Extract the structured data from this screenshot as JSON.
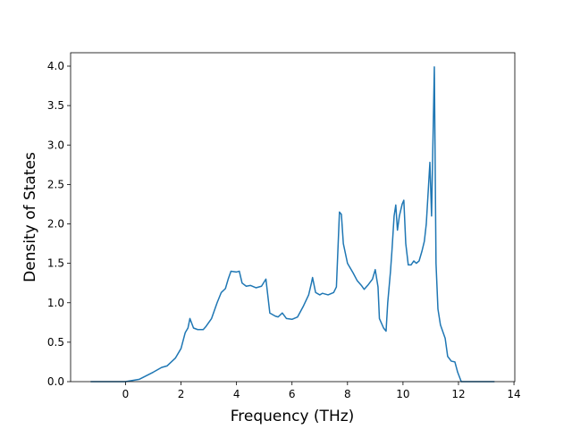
{
  "chart_data": {
    "type": "line",
    "xlabel": "Frequency (THz)",
    "ylabel": "Density of States",
    "xlim": [
      -1.98,
      14.03
    ],
    "ylim": [
      0,
      4.17
    ],
    "xticks": [
      0,
      2,
      4,
      6,
      8,
      10,
      12,
      14
    ],
    "yticks": [
      {
        "value": 0,
        "label": "0.0"
      },
      {
        "value": 0.5,
        "label": "0.5"
      },
      {
        "value": 1,
        "label": "1.0"
      },
      {
        "value": 1.5,
        "label": "1.5"
      },
      {
        "value": 2,
        "label": "2.0"
      },
      {
        "value": 2.5,
        "label": "2.5"
      },
      {
        "value": 3,
        "label": "3.0"
      },
      {
        "value": 3.5,
        "label": "3.5"
      },
      {
        "value": 4,
        "label": "4.0"
      }
    ],
    "series": [
      {
        "color": "#1f77b4",
        "x": [
          -1.26,
          0,
          0.5,
          1,
          1.3,
          1.5,
          1.8,
          2.0,
          2.15,
          2.25,
          2.32,
          2.45,
          2.6,
          2.8,
          2.9,
          3.1,
          3.3,
          3.45,
          3.6,
          3.7,
          3.8,
          4.0,
          4.1,
          4.2,
          4.35,
          4.5,
          4.7,
          4.9,
          5.06,
          5.2,
          5.4,
          5.5,
          5.65,
          5.8,
          6.0,
          6.2,
          6.4,
          6.6,
          6.7,
          6.74,
          6.85,
          7.0,
          7.1,
          7.3,
          7.5,
          7.6,
          7.71,
          7.78,
          7.85,
          8.0,
          8.2,
          8.35,
          8.5,
          8.6,
          8.75,
          8.9,
          9.0,
          9.1,
          9.15,
          9.3,
          9.39,
          9.45,
          9.55,
          9.6,
          9.68,
          9.74,
          9.8,
          9.87,
          9.97,
          10.03,
          10.1,
          10.19,
          10.29,
          10.39,
          10.48,
          10.58,
          10.68,
          10.77,
          10.84,
          10.97,
          11.03,
          11.13,
          11.19,
          11.26,
          11.35,
          11.52,
          11.61,
          11.74,
          11.87,
          11.97,
          12.1,
          13.3
        ],
        "values": [
          0,
          0,
          0.03,
          0.12,
          0.18,
          0.2,
          0.3,
          0.42,
          0.62,
          0.68,
          0.8,
          0.68,
          0.66,
          0.66,
          0.7,
          0.8,
          1.0,
          1.13,
          1.18,
          1.3,
          1.4,
          1.39,
          1.4,
          1.25,
          1.21,
          1.22,
          1.19,
          1.21,
          1.3,
          0.87,
          0.83,
          0.82,
          0.87,
          0.8,
          0.79,
          0.82,
          0.95,
          1.1,
          1.25,
          1.32,
          1.13,
          1.1,
          1.12,
          1.1,
          1.13,
          1.2,
          2.15,
          2.12,
          1.75,
          1.5,
          1.38,
          1.28,
          1.22,
          1.17,
          1.23,
          1.3,
          1.42,
          1.2,
          0.8,
          0.68,
          0.64,
          1.0,
          1.4,
          1.65,
          2.1,
          2.24,
          1.92,
          2.1,
          2.25,
          2.3,
          1.75,
          1.48,
          1.48,
          1.53,
          1.5,
          1.53,
          1.65,
          1.78,
          2.0,
          2.78,
          2.1,
          3.99,
          1.5,
          0.92,
          0.72,
          0.55,
          0.32,
          0.26,
          0.25,
          0.12,
          0,
          0
        ]
      }
    ]
  }
}
